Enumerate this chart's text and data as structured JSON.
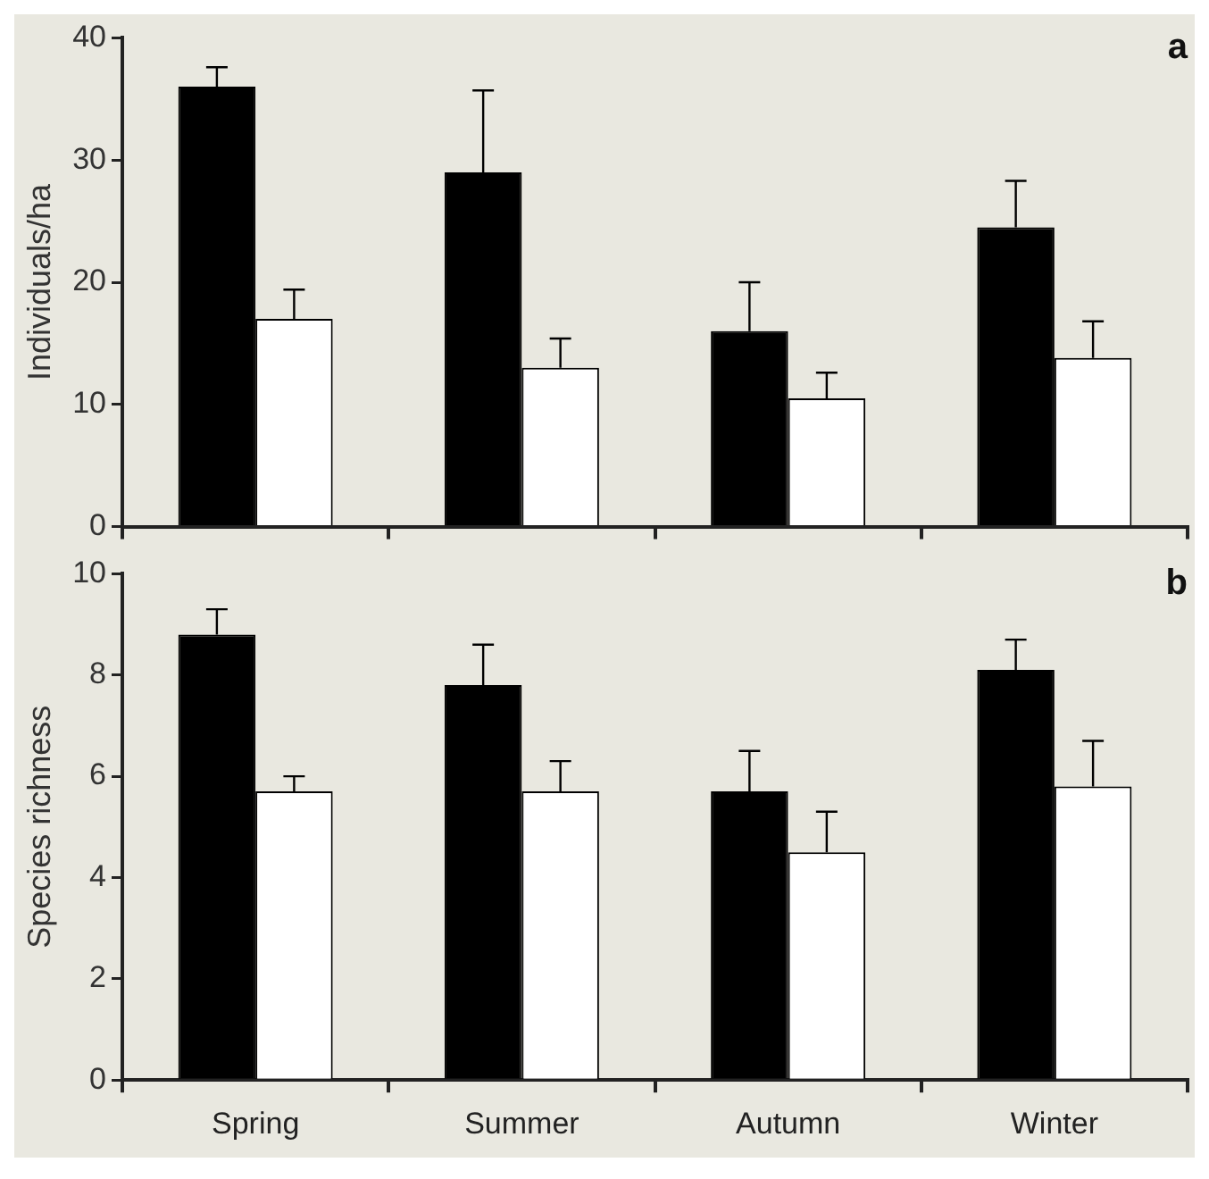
{
  "chart_data": [
    {
      "type": "bar",
      "ylabel": "Individuals/ha",
      "categories": [
        null,
        null,
        null,
        null
      ],
      "ylim": [
        0,
        40
      ],
      "yticks": [
        0,
        10,
        20,
        30,
        40
      ],
      "grid": false,
      "legend": false,
      "tick_labels": "y",
      "annotations": [
        "a"
      ],
      "series": [
        {
          "color": "#000000",
          "values": [
            36,
            29,
            16,
            24.5
          ],
          "errors": [
            [
              36,
              37.6
            ],
            [
              29,
              35.7
            ],
            [
              16,
              20
            ],
            [
              24.5,
              28.3
            ]
          ]
        },
        {
          "color": "#ffffff",
          "values": [
            17,
            13,
            10.5,
            13.8
          ],
          "errors": [
            [
              17,
              19.4
            ],
            [
              13,
              15.4
            ],
            [
              10.5,
              12.6
            ],
            [
              13.8,
              16.8
            ]
          ]
        }
      ]
    },
    {
      "type": "bar",
      "ylabel": "Species richness",
      "categories": [
        "Spring",
        "Summer",
        "Autumn",
        "Winter"
      ],
      "ylim": [
        0,
        10
      ],
      "yticks": [
        0,
        2,
        4,
        6,
        8,
        10
      ],
      "grid": false,
      "legend": false,
      "annotations": [
        "b"
      ],
      "series": [
        {
          "color": "#000000",
          "values": [
            8.8,
            7.8,
            5.7,
            8.1
          ],
          "errors": [
            [
              8.8,
              9.3
            ],
            [
              7.8,
              8.6
            ],
            [
              5.7,
              6.5
            ],
            [
              8.1,
              8.7
            ]
          ]
        },
        {
          "color": "#ffffff",
          "values": [
            5.7,
            5.7,
            4.5,
            5.8
          ],
          "errors": [
            [
              5.7,
              6.0
            ],
            [
              5.7,
              6.3
            ],
            [
              4.5,
              5.3
            ],
            [
              5.8,
              6.7
            ]
          ]
        }
      ]
    }
  ]
}
